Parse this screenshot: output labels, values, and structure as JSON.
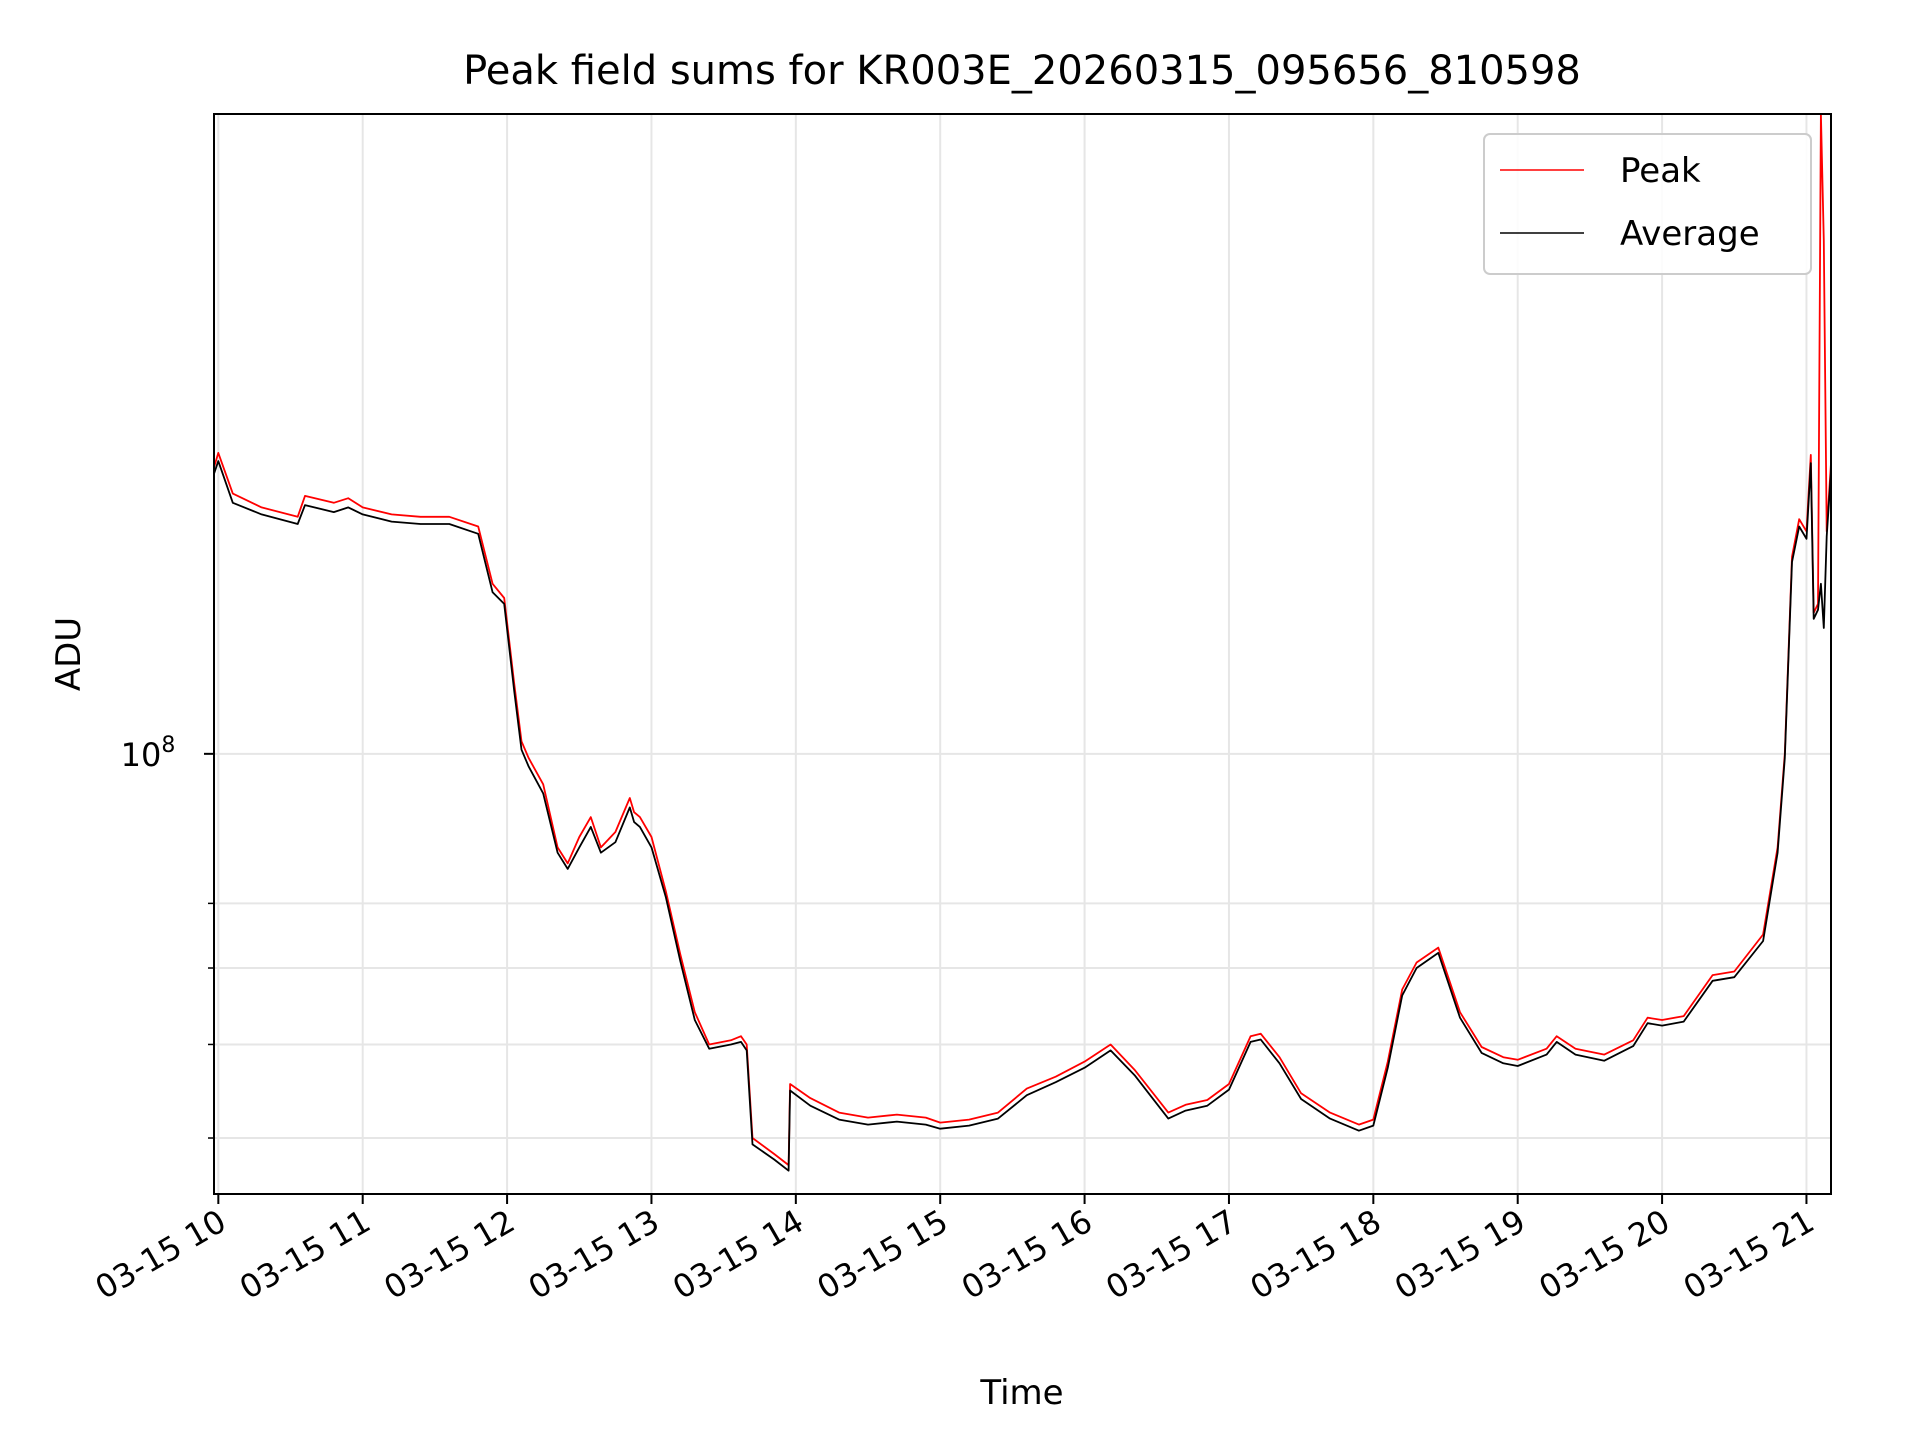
{
  "chart_data": {
    "type": "line",
    "title": "Peak field sums for KR003E_20260315_095656_810598",
    "xlabel": "Time",
    "ylabel": "ADU",
    "x_unit": "hours (2026-03-15)",
    "x_ticks": [
      {
        "value": 10,
        "label": "03-15 10"
      },
      {
        "value": 11,
        "label": "03-15 11"
      },
      {
        "value": 12,
        "label": "03-15 12"
      },
      {
        "value": 13,
        "label": "03-15 13"
      },
      {
        "value": 14,
        "label": "03-15 14"
      },
      {
        "value": 15,
        "label": "03-15 15"
      },
      {
        "value": 16,
        "label": "03-15 16"
      },
      {
        "value": 17,
        "label": "03-15 17"
      },
      {
        "value": 18,
        "label": "03-15 18"
      },
      {
        "value": 19,
        "label": "03-15 19"
      },
      {
        "value": 20,
        "label": "03-15 20"
      },
      {
        "value": 21,
        "label": "03-15 21"
      }
    ],
    "xlim": [
      9.97,
      21.17
    ],
    "ylim": [
      35000000,
      460000000
    ],
    "y_scale": "log",
    "y_major_ticks": [
      {
        "value": 100000000,
        "base": "10",
        "exponent": "8"
      }
    ],
    "y_minor_ticks": [
      40000000,
      50000000,
      60000000,
      70000000
    ],
    "grid": true,
    "legend_position": "upper right",
    "colors": {
      "peak": "#ff0000",
      "average": "#000000"
    },
    "series": [
      {
        "name": "Peak",
        "color": "#ff0000",
        "x": [
          9.97,
          10.0,
          10.1,
          10.3,
          10.55,
          10.6,
          10.8,
          10.9,
          11.0,
          11.2,
          11.4,
          11.6,
          11.8,
          11.9,
          11.98,
          12.05,
          12.1,
          12.15,
          12.25,
          12.35,
          12.42,
          12.5,
          12.58,
          12.65,
          12.75,
          12.85,
          12.88,
          12.92,
          13.0,
          13.1,
          13.2,
          13.3,
          13.4,
          13.55,
          13.62,
          13.66,
          13.7,
          13.85,
          13.95,
          13.96,
          14.1,
          14.3,
          14.5,
          14.7,
          14.9,
          15.0,
          15.2,
          15.4,
          15.6,
          15.8,
          16.0,
          16.18,
          16.35,
          16.58,
          16.7,
          16.85,
          17.0,
          17.15,
          17.22,
          17.35,
          17.5,
          17.7,
          17.9,
          18.0,
          18.1,
          18.2,
          18.3,
          18.45,
          18.6,
          18.75,
          18.9,
          19.0,
          19.2,
          19.27,
          19.4,
          19.6,
          19.8,
          19.9,
          20.0,
          20.15,
          20.35,
          20.5,
          20.7,
          20.8,
          20.85,
          20.9,
          20.95,
          21.0,
          21.03,
          21.05,
          21.08,
          21.1,
          21.12,
          21.14,
          21.17
        ],
        "values": [
          198000000,
          205000000,
          186000000,
          180000000,
          176000000,
          185000000,
          182000000,
          184000000,
          180000000,
          177000000,
          176000000,
          176000000,
          172000000,
          150000000,
          145000000,
          118000000,
          103000000,
          99000000,
          93000000,
          80000000,
          77000000,
          82000000,
          86000000,
          80000000,
          83000000,
          90000000,
          87000000,
          86000000,
          82000000,
          72000000,
          62000000,
          54000000,
          50000000,
          50500000,
          51000000,
          50000000,
          40000000,
          38500000,
          37500000,
          45500000,
          44000000,
          42500000,
          42000000,
          42300000,
          42000000,
          41500000,
          41800000,
          42500000,
          45000000,
          46300000,
          48000000,
          50000000,
          47000000,
          42500000,
          43300000,
          43800000,
          45500000,
          51000000,
          51300000,
          48500000,
          44500000,
          42500000,
          41300000,
          41800000,
          48000000,
          57000000,
          60800000,
          63000000,
          54000000,
          49700000,
          48500000,
          48200000,
          49500000,
          51000000,
          49500000,
          48800000,
          50500000,
          53300000,
          53000000,
          53500000,
          59000000,
          59500000,
          65000000,
          80000000,
          100000000,
          160000000,
          175000000,
          170000000,
          204000000,
          140000000,
          143000000,
          460000000,
          340000000,
          170000000,
          200000000
        ]
      },
      {
        "name": "Average",
        "color": "#000000",
        "x": [
          9.97,
          10.0,
          10.1,
          10.3,
          10.55,
          10.6,
          10.8,
          10.9,
          11.0,
          11.2,
          11.4,
          11.6,
          11.8,
          11.9,
          11.98,
          12.05,
          12.1,
          12.15,
          12.25,
          12.35,
          12.42,
          12.5,
          12.58,
          12.65,
          12.75,
          12.85,
          12.88,
          12.92,
          13.0,
          13.1,
          13.2,
          13.3,
          13.4,
          13.55,
          13.62,
          13.66,
          13.7,
          13.85,
          13.95,
          13.96,
          14.1,
          14.3,
          14.5,
          14.7,
          14.9,
          15.0,
          15.2,
          15.4,
          15.6,
          15.8,
          16.0,
          16.18,
          16.35,
          16.58,
          16.7,
          16.85,
          17.0,
          17.15,
          17.22,
          17.35,
          17.5,
          17.7,
          17.9,
          18.0,
          18.1,
          18.2,
          18.3,
          18.45,
          18.6,
          18.75,
          18.9,
          19.0,
          19.2,
          19.27,
          19.4,
          19.6,
          19.8,
          19.9,
          20.0,
          20.15,
          20.35,
          20.5,
          20.7,
          20.8,
          20.85,
          20.9,
          20.95,
          21.0,
          21.03,
          21.05,
          21.08,
          21.1,
          21.12,
          21.14,
          21.17
        ],
        "values": [
          195000000,
          201000000,
          182000000,
          177000000,
          173000000,
          181000000,
          178000000,
          180000000,
          177000000,
          174000000,
          173000000,
          173000000,
          169000000,
          147000000,
          143000000,
          116000000,
          101000000,
          97000000,
          91000000,
          79000000,
          76000000,
          80000000,
          84000000,
          79000000,
          81000000,
          88000000,
          85000000,
          84000000,
          80000000,
          71000000,
          61000000,
          53000000,
          49500000,
          50000000,
          50300000,
          49300000,
          39400000,
          38000000,
          37000000,
          44800000,
          43200000,
          41800000,
          41300000,
          41600000,
          41300000,
          40900000,
          41200000,
          41900000,
          44300000,
          45700000,
          47300000,
          49300000,
          46400000,
          41900000,
          42700000,
          43200000,
          44900000,
          50300000,
          50600000,
          47800000,
          43900000,
          41900000,
          40700000,
          41200000,
          47300000,
          56200000,
          60000000,
          62200000,
          53300000,
          49000000,
          47800000,
          47500000,
          48800000,
          50300000,
          48800000,
          48100000,
          49800000,
          52600000,
          52300000,
          52800000,
          58200000,
          58700000,
          64000000,
          79000000,
          99000000,
          158000000,
          172000000,
          167000000,
          200000000,
          138000000,
          141000000,
          150000000,
          135000000,
          168000000,
          196000000
        ]
      }
    ]
  }
}
